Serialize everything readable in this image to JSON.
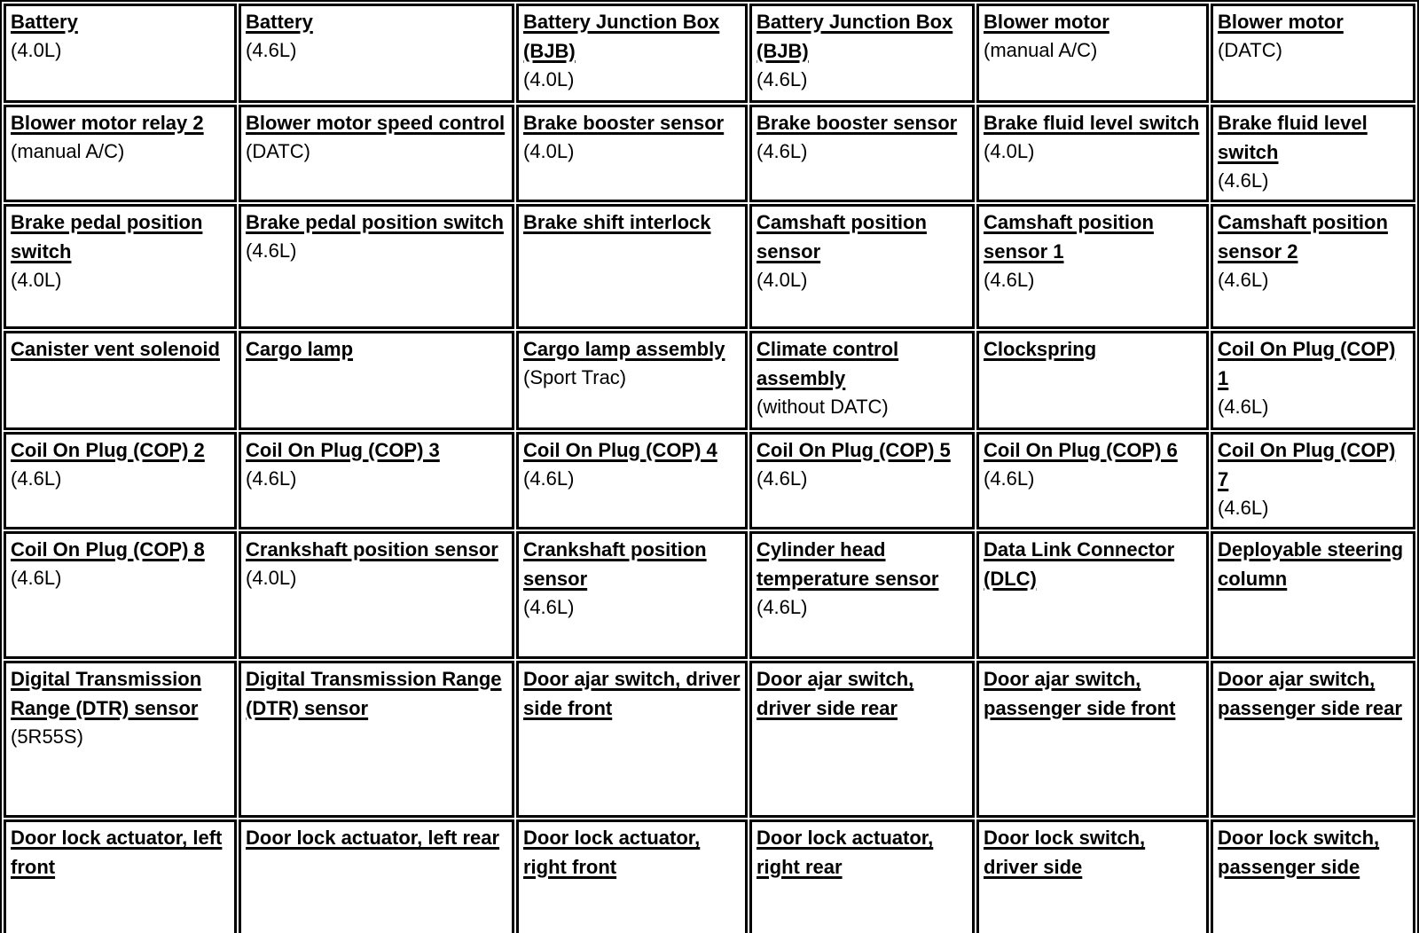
{
  "page": {
    "background_color": "#ffffff",
    "text_color": "#000000",
    "link_color": "#000000",
    "border_color": "#000000"
  },
  "table": {
    "columns": 6,
    "rows": [
      [
        {
          "link": "Battery",
          "note": "(4.0L)"
        },
        {
          "link": "Battery",
          "note": "(4.6L)"
        },
        {
          "link": "Battery Junction Box (BJB)",
          "note": "(4.0L)"
        },
        {
          "link": "Battery Junction Box (BJB)",
          "note": "(4.6L)"
        },
        {
          "link": "Blower motor",
          "note": "(manual A/C)"
        },
        {
          "link": "Blower motor",
          "note": "(DATC)"
        }
      ],
      [
        {
          "link": "Blower motor relay 2",
          "note": "(manual A/C)"
        },
        {
          "link": "Blower motor speed control",
          "note": "(DATC)"
        },
        {
          "link": "Brake booster sensor",
          "note": "(4.0L)"
        },
        {
          "link": "Brake booster sensor",
          "note": "(4.6L)"
        },
        {
          "link": "Brake fluid level switch",
          "note": "(4.0L)"
        },
        {
          "link": "Brake fluid level switch",
          "note": "(4.6L)"
        }
      ],
      [
        {
          "link": "Brake pedal position switch",
          "note": "(4.0L)"
        },
        {
          "link": "Brake pedal position switch",
          "note": "(4.6L)"
        },
        {
          "link": "Brake shift interlock",
          "note": ""
        },
        {
          "link": "Camshaft position sensor",
          "note": "(4.0L)"
        },
        {
          "link": "Camshaft position sensor 1",
          "note": "(4.6L)"
        },
        {
          "link": "Camshaft position sensor 2",
          "note": "(4.6L)"
        }
      ],
      [
        {
          "link": "Canister vent solenoid",
          "note": ""
        },
        {
          "link": "Cargo lamp",
          "note": ""
        },
        {
          "link": "Cargo lamp assembly",
          "note": "(Sport Trac)"
        },
        {
          "link": "Climate control assembly",
          "note": "(without DATC)"
        },
        {
          "link": "Clockspring",
          "note": ""
        },
        {
          "link": "Coil On Plug (COP) 1",
          "note": "(4.6L)"
        }
      ],
      [
        {
          "link": "Coil On Plug (COP) 2",
          "note": "(4.6L)"
        },
        {
          "link": "Coil On Plug (COP) 3",
          "note": "(4.6L)"
        },
        {
          "link": "Coil On Plug (COP) 4",
          "note": "(4.6L)"
        },
        {
          "link": "Coil On Plug (COP) 5",
          "note": "(4.6L)"
        },
        {
          "link": "Coil On Plug (COP) 6",
          "note": "(4.6L)"
        },
        {
          "link": "Coil On Plug (COP) 7",
          "note": "(4.6L)"
        }
      ],
      [
        {
          "link": "Coil On Plug (COP) 8",
          "note": "(4.6L)"
        },
        {
          "link": "Crankshaft position sensor",
          "note": "(4.0L)"
        },
        {
          "link": "Crankshaft position sensor",
          "note": "(4.6L)"
        },
        {
          "link": "Cylinder head temperature sensor",
          "note": "(4.6L)"
        },
        {
          "link": "Data Link Connector (DLC)",
          "note": ""
        },
        {
          "link": "Deployable steering column",
          "note": ""
        }
      ],
      [
        {
          "link": "Digital Transmission Range (DTR) sensor",
          "note": "(5R55S)"
        },
        {
          "link": "Digital Transmission Range (DTR) sensor",
          "note": ""
        },
        {
          "link": "Door ajar switch, driver side front",
          "note": ""
        },
        {
          "link": "Door ajar switch, driver side rear",
          "note": ""
        },
        {
          "link": "Door ajar switch, passenger side front",
          "note": ""
        },
        {
          "link": "Door ajar switch, passenger side rear",
          "note": ""
        }
      ],
      [
        {
          "link": "Door lock actuator, left front",
          "note": ""
        },
        {
          "link": "Door lock actuator, left rear",
          "note": ""
        },
        {
          "link": "Door lock actuator, right front",
          "note": ""
        },
        {
          "link": "Door lock actuator, right rear",
          "note": ""
        },
        {
          "link": "Door lock switch, driver side",
          "note": ""
        },
        {
          "link": "Door lock switch, passenger side",
          "note": ""
        }
      ]
    ]
  }
}
